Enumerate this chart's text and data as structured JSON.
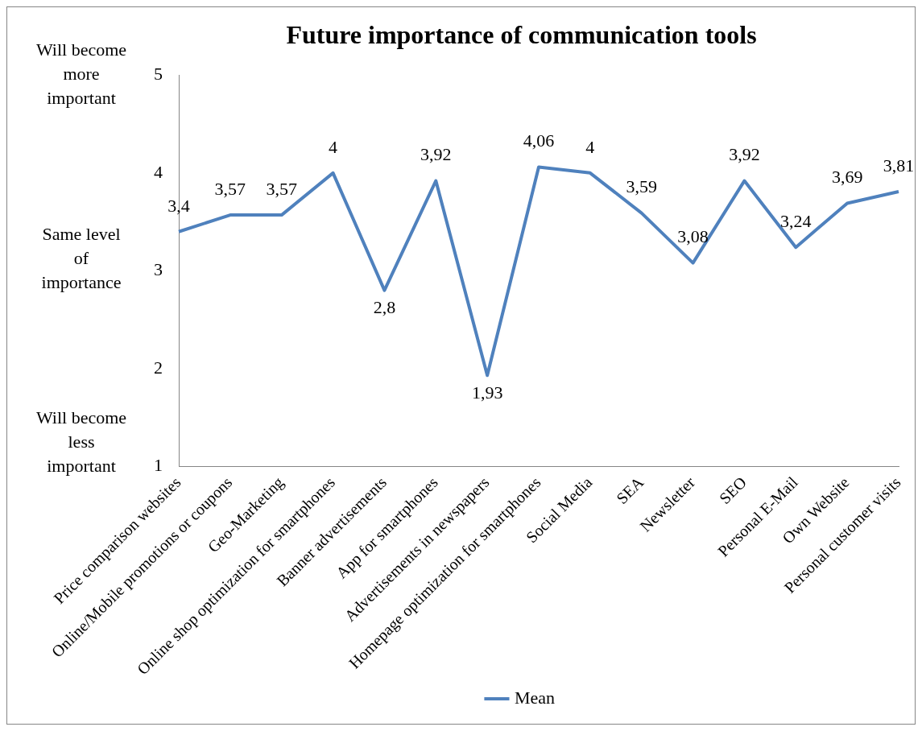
{
  "chart_data": {
    "type": "line",
    "title": "Future importance of communication tools",
    "categories": [
      "Price comparison websites",
      "Online/Mobile promotions or coupons",
      "Geo-Marketing",
      "Online shop optimization for smartphones",
      "Banner advertisements",
      "App for smartphones",
      "Advertisements in newspapers",
      "Homepage optimization for smartphones",
      "Social Media",
      "SEA",
      "Newsletter",
      "SEO",
      "Personal E-Mail",
      "Own Website",
      "Personal customer visits"
    ],
    "series": [
      {
        "name": "Mean",
        "color": "#4f81bd",
        "values": [
          3.4,
          3.57,
          3.57,
          4,
          2.8,
          3.92,
          1.93,
          4.06,
          4,
          3.59,
          3.08,
          3.92,
          3.24,
          3.69,
          3.81
        ],
        "value_labels": [
          "3,4",
          "3,57",
          "3,57",
          "4",
          "2,8",
          "3,92",
          "1,93",
          "4,06",
          "4",
          "3,59",
          "3,08",
          "3,92",
          "3,24",
          "3,69",
          "3,81"
        ]
      }
    ],
    "ylim": [
      1,
      5
    ],
    "yticks": [
      1,
      2,
      3,
      4,
      5
    ],
    "grid": false,
    "legend": "bottom",
    "marker": "none",
    "line_style": "solid",
    "annotations": [
      "Will become more important",
      "Same level of importance",
      "Will become less important"
    ]
  }
}
